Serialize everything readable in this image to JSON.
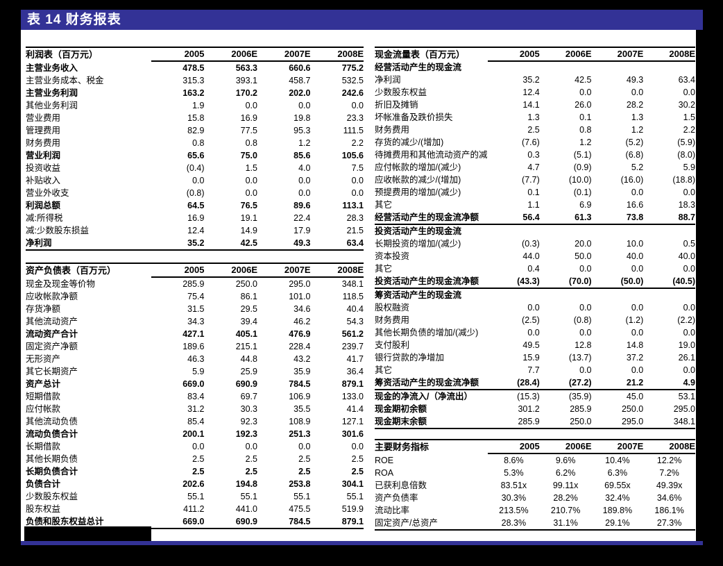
{
  "header": {
    "title": "表 14 财务报表"
  },
  "colors": {
    "accent_blue": "#333296",
    "page": "#FFFFFF",
    "background": "#000000",
    "text": "#000000"
  },
  "tables": {
    "income": {
      "title": "利润表（百万元）",
      "years": [
        "2005",
        "2006E",
        "2007E",
        "2008E"
      ],
      "rows": [
        {
          "label": "主营业务收入",
          "bold": true,
          "values": [
            "478.5",
            "563.3",
            "660.6",
            "775.2"
          ]
        },
        {
          "label": "主营业务成本、税金",
          "values": [
            "315.3",
            "393.1",
            "458.7",
            "532.5"
          ]
        },
        {
          "label": "主营业务利润",
          "bold": true,
          "values": [
            "163.2",
            "170.2",
            "202.0",
            "242.6"
          ]
        },
        {
          "label": "其他业务利润",
          "values": [
            "1.9",
            "0.0",
            "0.0",
            "0.0"
          ]
        },
        {
          "label": "营业费用",
          "values": [
            "15.8",
            "16.9",
            "19.8",
            "23.3"
          ]
        },
        {
          "label": "管理费用",
          "values": [
            "82.9",
            "77.5",
            "95.3",
            "111.5"
          ]
        },
        {
          "label": "财务费用",
          "values": [
            "0.8",
            "0.8",
            "1.2",
            "2.2"
          ]
        },
        {
          "label": "营业利润",
          "bold": true,
          "values": [
            "65.6",
            "75.0",
            "85.6",
            "105.6"
          ]
        },
        {
          "label": "投资收益",
          "values": [
            "(0.4)",
            "1.5",
            "4.0",
            "7.5"
          ]
        },
        {
          "label": "补贴收入",
          "values": [
            "0.0",
            "0.0",
            "0.0",
            "0.0"
          ]
        },
        {
          "label": "营业外收支",
          "values": [
            "(0.8)",
            "0.0",
            "0.0",
            "0.0"
          ]
        },
        {
          "label": "利润总额",
          "bold": true,
          "values": [
            "64.5",
            "76.5",
            "89.6",
            "113.1"
          ]
        },
        {
          "label": "减:所得税",
          "values": [
            "16.9",
            "19.1",
            "22.4",
            "28.3"
          ]
        },
        {
          "label": "减:少数股东损益",
          "values": [
            "12.4",
            "14.9",
            "17.9",
            "21.5"
          ]
        },
        {
          "label": "净利润",
          "bold": true,
          "rule": true,
          "values": [
            "35.2",
            "42.5",
            "49.3",
            "63.4"
          ]
        }
      ]
    },
    "balance": {
      "title": "资产负债表（百万元）",
      "years": [
        "2005",
        "2006E",
        "2007E",
        "2008E"
      ],
      "rows": [
        {
          "label": "现金及现金等价物",
          "values": [
            "285.9",
            "250.0",
            "295.0",
            "348.1"
          ]
        },
        {
          "label": "应收帐款净额",
          "values": [
            "75.4",
            "86.1",
            "101.0",
            "118.5"
          ]
        },
        {
          "label": "存货净额",
          "values": [
            "31.5",
            "29.5",
            "34.6",
            "40.4"
          ]
        },
        {
          "label": "其他流动资产",
          "values": [
            "34.3",
            "39.4",
            "46.2",
            "54.3"
          ]
        },
        {
          "label": "流动资产合计",
          "bold": true,
          "values": [
            "427.1",
            "405.1",
            "476.9",
            "561.2"
          ]
        },
        {
          "label": "固定资产净额",
          "values": [
            "189.6",
            "215.1",
            "228.4",
            "239.7"
          ]
        },
        {
          "label": "无形资产",
          "values": [
            "46.3",
            "44.8",
            "43.2",
            "41.7"
          ]
        },
        {
          "label": "其它长期资产",
          "values": [
            "5.9",
            "25.9",
            "35.9",
            "36.4"
          ]
        },
        {
          "label": "资产总计",
          "bold": true,
          "values": [
            "669.0",
            "690.9",
            "784.5",
            "879.1"
          ]
        },
        {
          "label": "短期借款",
          "values": [
            "83.4",
            "69.7",
            "106.9",
            "133.0"
          ]
        },
        {
          "label": "应付帐款",
          "values": [
            "31.2",
            "30.3",
            "35.5",
            "41.4"
          ]
        },
        {
          "label": "其他流动负债",
          "values": [
            "85.4",
            "92.3",
            "108.9",
            "127.1"
          ]
        },
        {
          "label": "流动负债合计",
          "bold": true,
          "values": [
            "200.1",
            "192.3",
            "251.3",
            "301.6"
          ]
        },
        {
          "label": "长期借款",
          "values": [
            "0.0",
            "0.0",
            "0.0",
            "0.0"
          ]
        },
        {
          "label": "其他长期负债",
          "values": [
            "2.5",
            "2.5",
            "2.5",
            "2.5"
          ]
        },
        {
          "label": "长期负债合计",
          "bold": true,
          "values": [
            "2.5",
            "2.5",
            "2.5",
            "2.5"
          ]
        },
        {
          "label": "负债合计",
          "bold": true,
          "values": [
            "202.6",
            "194.8",
            "253.8",
            "304.1"
          ]
        },
        {
          "label": "少数股东权益",
          "values": [
            "55.1",
            "55.1",
            "55.1",
            "55.1"
          ]
        },
        {
          "label": "股东权益",
          "values": [
            "411.2",
            "441.0",
            "475.5",
            "519.9"
          ]
        },
        {
          "label": "负债和股东权益总计",
          "bold": true,
          "rule": true,
          "values": [
            "669.0",
            "690.9",
            "784.5",
            "879.1"
          ]
        }
      ]
    },
    "cashflow": {
      "title": "现金流量表（百万元）",
      "years": [
        "2005",
        "2006E",
        "2007E",
        "2008E"
      ],
      "rows": [
        {
          "label": "经营活动产生的现金流",
          "section": true
        },
        {
          "label": "净利润",
          "values": [
            "35.2",
            "42.5",
            "49.3",
            "63.4"
          ]
        },
        {
          "label": "少数股东权益",
          "values": [
            "12.4",
            "0.0",
            "0.0",
            "0.0"
          ]
        },
        {
          "label": "折旧及摊销",
          "values": [
            "14.1",
            "26.0",
            "28.2",
            "30.2"
          ]
        },
        {
          "label": "坏帐准备及跌价损失",
          "values": [
            "1.3",
            "0.1",
            "1.3",
            "1.5"
          ]
        },
        {
          "label": "财务费用",
          "values": [
            "2.5",
            "0.8",
            "1.2",
            "2.2"
          ]
        },
        {
          "label": "存货的减少/(增加)",
          "values": [
            "(7.6)",
            "1.2",
            "(5.2)",
            "(5.9)"
          ]
        },
        {
          "label": "待摊费用和其他流动资产的减",
          "values": [
            "0.3",
            "(5.1)",
            "(6.8)",
            "(8.0)"
          ]
        },
        {
          "label": "应付帐款的增加/(减少)",
          "values": [
            "4.7",
            "(0.9)",
            "5.2",
            "5.9"
          ]
        },
        {
          "label": "应收帐款的减少/(增加)",
          "values": [
            "(7.7)",
            "(10.0)",
            "(16.0)",
            "(18.8)"
          ]
        },
        {
          "label": "预提费用的增加/(减少)",
          "values": [
            "0.1",
            "(0.1)",
            "0.0",
            "0.0"
          ]
        },
        {
          "label": "其它",
          "values": [
            "1.1",
            "6.9",
            "16.6",
            "18.3"
          ]
        },
        {
          "label": "经营活动产生的现金流净额",
          "bold": true,
          "rule": true,
          "values": [
            "56.4",
            "61.3",
            "73.8",
            "88.7"
          ]
        },
        {
          "label": "投资活动产生的现金流",
          "section": true
        },
        {
          "label": "长期投资的增加/(减少)",
          "values": [
            "(0.3)",
            "20.0",
            "10.0",
            "0.5"
          ]
        },
        {
          "label": "资本投资",
          "values": [
            "44.0",
            "50.0",
            "40.0",
            "40.0"
          ]
        },
        {
          "label": "其它",
          "values": [
            "0.4",
            "0.0",
            "0.0",
            "0.0"
          ]
        },
        {
          "label": "投资活动产生的现金流净额",
          "bold": true,
          "rule": true,
          "values": [
            "(43.3)",
            "(70.0)",
            "(50.0)",
            "(40.5)"
          ]
        },
        {
          "label": "筹资活动产生的现金流",
          "section": true
        },
        {
          "label": "股权融资",
          "values": [
            "0.0",
            "0.0",
            "0.0",
            "0.0"
          ]
        },
        {
          "label": "财务费用",
          "values": [
            "(2.5)",
            "(0.8)",
            "(1.2)",
            "(2.2)"
          ]
        },
        {
          "label": "其他长期负债的增加/(减少)",
          "values": [
            "0.0",
            "0.0",
            "0.0",
            "0.0"
          ]
        },
        {
          "label": "支付股利",
          "values": [
            "49.5",
            "12.8",
            "14.8",
            "19.0"
          ]
        },
        {
          "label": "银行贷款的净增加",
          "values": [
            "15.9",
            "(13.7)",
            "37.2",
            "26.1"
          ]
        },
        {
          "label": "其它",
          "values": [
            "7.7",
            "0.0",
            "0.0",
            "0.0"
          ]
        },
        {
          "label": "筹资活动产生的现金流净额",
          "bold": true,
          "rule": true,
          "values": [
            "(28.4)",
            "(27.2)",
            "21.2",
            "4.9"
          ]
        },
        {
          "label": "现金的净流入/（净流出）",
          "label_bold": true,
          "values": [
            "(15.3)",
            "(35.9)",
            "45.0",
            "53.1"
          ]
        },
        {
          "label": "现金期初余额",
          "label_bold": true,
          "values": [
            "301.2",
            "285.9",
            "250.0",
            "295.0"
          ]
        },
        {
          "label": "现金期末余额",
          "label_bold": true,
          "rule": true,
          "values": [
            "285.9",
            "250.0",
            "295.0",
            "348.1"
          ]
        }
      ]
    },
    "indicators": {
      "title": "主要财务指标",
      "years": [
        "2005",
        "2006E",
        "2007E",
        "2008E"
      ],
      "rows": [
        {
          "label": "ROE",
          "values": [
            "8.6%",
            "9.6%",
            "10.4%",
            "12.2%"
          ]
        },
        {
          "label": "ROA",
          "values": [
            "5.3%",
            "6.2%",
            "6.3%",
            "7.2%"
          ]
        },
        {
          "label": "已获利息倍数",
          "values": [
            "83.51x",
            "99.11x",
            "69.55x",
            "49.39x"
          ]
        },
        {
          "label": "资产负债率",
          "values": [
            "30.3%",
            "28.2%",
            "32.4%",
            "34.6%"
          ]
        },
        {
          "label": "流动比率",
          "values": [
            "213.5%",
            "210.7%",
            "189.8%",
            "186.1%"
          ]
        },
        {
          "label": "固定资产/总资产",
          "rule": true,
          "values": [
            "28.3%",
            "31.1%",
            "29.1%",
            "27.3%"
          ]
        }
      ]
    }
  }
}
